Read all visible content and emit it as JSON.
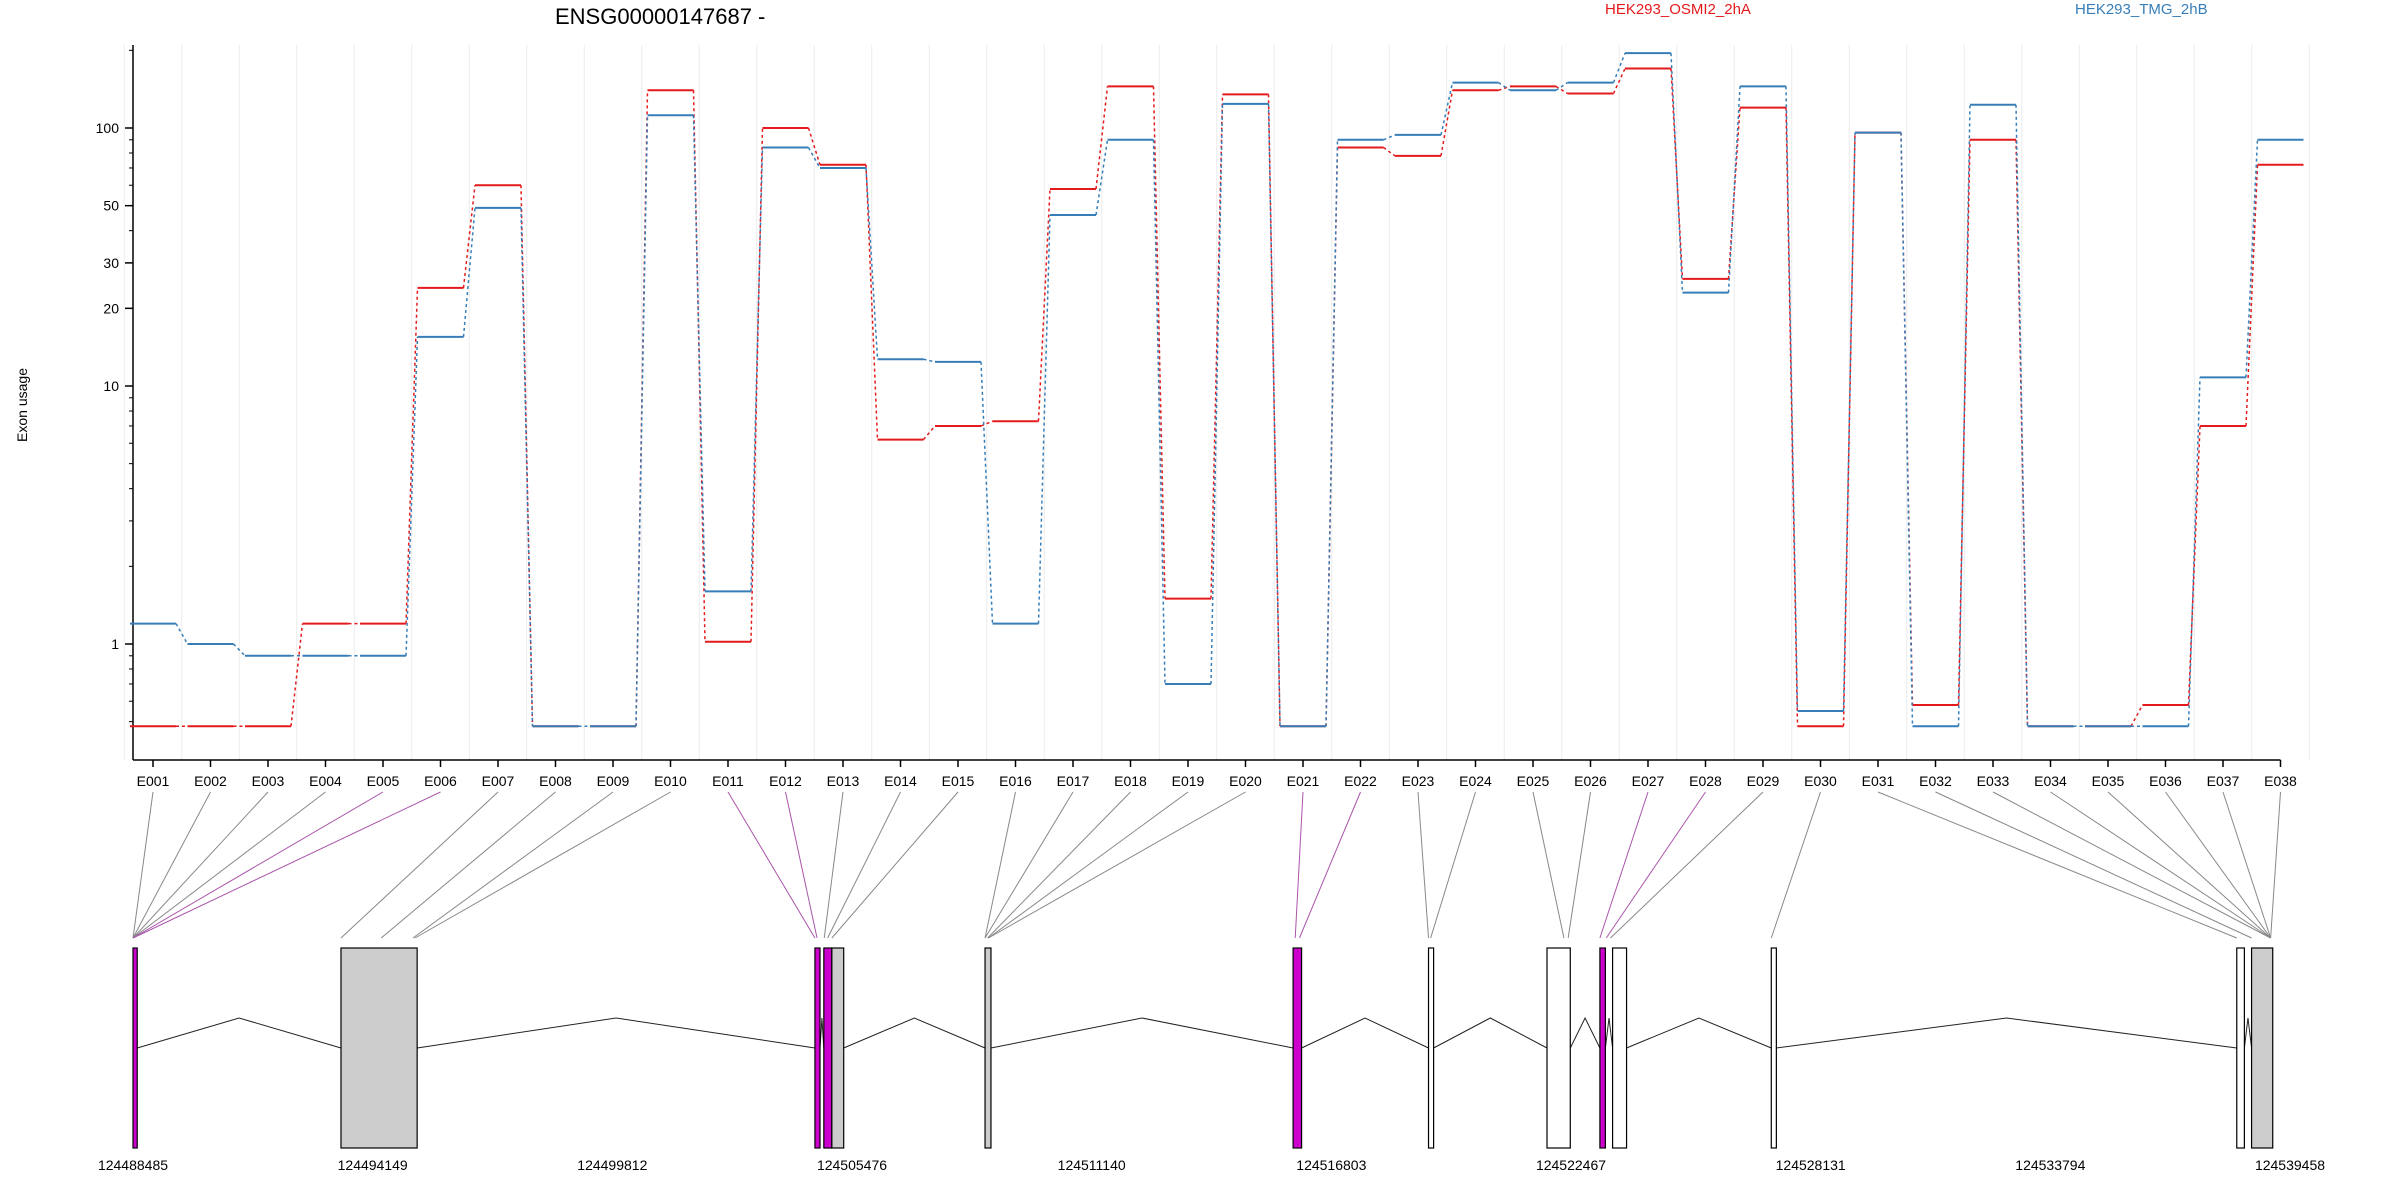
{
  "chart_data": {
    "type": "line",
    "title": "ENSG00000147687 -",
    "ylabel": "Exon usage",
    "y_scale": "log",
    "y_ticks": [
      1,
      10,
      20,
      30,
      50,
      100
    ],
    "grid": "vertical",
    "legend_placement": "top",
    "categories": [
      "E001",
      "E002",
      "E003",
      "E004",
      "E005",
      "E006",
      "E007",
      "E008",
      "E009",
      "E010",
      "E011",
      "E012",
      "E013",
      "E014",
      "E015",
      "E016",
      "E017",
      "E018",
      "E019",
      "E020",
      "E021",
      "E022",
      "E023",
      "E024",
      "E025",
      "E026",
      "E027",
      "E028",
      "E029",
      "E030",
      "E031",
      "E032",
      "E033",
      "E034",
      "E035",
      "E036",
      "E037",
      "E038"
    ],
    "series": [
      {
        "name": "HEK293_OSMI2_2hA",
        "color": "#e41a1c",
        "values": [
          0.48,
          0.48,
          0.48,
          1.2,
          1.2,
          24,
          60,
          0.48,
          0.48,
          140,
          1.02,
          100,
          72,
          6.2,
          7,
          7.3,
          58,
          145,
          1.5,
          135,
          0.48,
          84,
          78,
          140,
          145,
          136,
          170,
          26,
          120,
          0.48,
          96,
          0.58,
          90,
          0.48,
          0.48,
          0.58,
          7,
          72
        ]
      },
      {
        "name": "HEK293_TMG_2hB",
        "color": "#377eb8",
        "values": [
          1.2,
          1.0,
          0.9,
          0.9,
          0.9,
          15.5,
          49,
          0.48,
          0.48,
          112,
          1.6,
          84,
          70,
          12.7,
          12.4,
          1.2,
          46,
          90,
          0.7,
          124,
          0.48,
          90,
          94,
          150,
          140,
          150,
          195,
          23,
          145,
          0.55,
          96,
          0.48,
          123,
          0.48,
          0.48,
          0.48,
          10.8,
          90
        ]
      }
    ],
    "genomic_ticks": [
      "124488485",
      "124494149",
      "124499812",
      "124505476",
      "124511140",
      "124516803",
      "124522467",
      "124528131",
      "124533794",
      "124539458"
    ],
    "genomic_range": [
      124488485,
      124539458
    ],
    "transcript_blocks": [
      {
        "start": 124488485,
        "end": 124488585,
        "fill": "#cc00cc"
      },
      {
        "start": 124493400,
        "end": 124495200,
        "fill": "#cccccc"
      },
      {
        "start": 124504600,
        "end": 124504720,
        "fill": "#cc00cc"
      },
      {
        "start": 124504810,
        "end": 124505000,
        "fill": "#cc00cc"
      },
      {
        "start": 124505000,
        "end": 124505280,
        "fill": "#cccccc"
      },
      {
        "start": 124508620,
        "end": 124508760,
        "fill": "#cccccc"
      },
      {
        "start": 124515900,
        "end": 124516100,
        "fill": "#cc00cc"
      },
      {
        "start": 124519100,
        "end": 124519220,
        "fill": "#ffffff"
      },
      {
        "start": 124521900,
        "end": 124522450,
        "fill": "#ffffff"
      },
      {
        "start": 124523150,
        "end": 124523280,
        "fill": "#cc00cc"
      },
      {
        "start": 124523450,
        "end": 124523780,
        "fill": "#ffffff"
      },
      {
        "start": 124527200,
        "end": 124527320,
        "fill": "#ffffff"
      },
      {
        "start": 124538200,
        "end": 124538380,
        "fill": "#ffffff"
      },
      {
        "start": 124538550,
        "end": 124539050,
        "fill": "#cccccc"
      }
    ],
    "exon_link_targets": [
      124488485,
      124488485,
      124488485,
      124488485,
      124488485,
      124488485,
      124493400,
      124494350,
      124495100,
      124495150,
      124504600,
      124504650,
      124504820,
      124504900,
      124505000,
      124508620,
      124508620,
      124508680,
      124508700,
      124508700,
      124515950,
      124516050,
      124519100,
      124519150,
      124522300,
      124522400,
      124523150,
      124523300,
      124523400,
      124527200,
      124538200,
      124538550,
      124539000,
      124539000,
      124539000,
      124539000,
      124539000,
      124539000
    ],
    "exon_link_colors": [
      "#888888",
      "#888888",
      "#888888",
      "#888888",
      "#aa55aa",
      "#aa55aa",
      "#888888",
      "#888888",
      "#888888",
      "#888888",
      "#aa55aa",
      "#aa55aa",
      "#888888",
      "#888888",
      "#888888",
      "#888888",
      "#888888",
      "#888888",
      "#888888",
      "#888888",
      "#aa55aa",
      "#aa55aa",
      "#888888",
      "#888888",
      "#888888",
      "#888888",
      "#aa55aa",
      "#aa55aa",
      "#888888",
      "#888888",
      "#888888",
      "#888888",
      "#888888",
      "#888888",
      "#888888",
      "#888888",
      "#888888",
      "#888888"
    ]
  }
}
